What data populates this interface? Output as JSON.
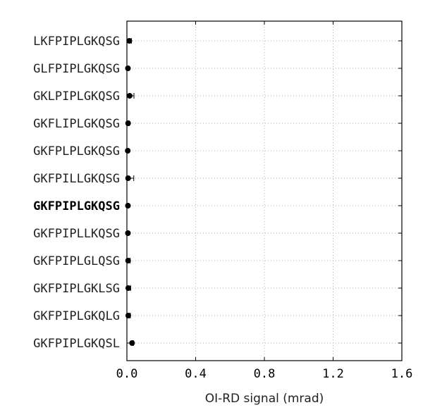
{
  "chart_data": {
    "type": "scatter",
    "orientation": "horizontal",
    "xlabel": "OI-RD signal (mrad)",
    "xlim": [
      0.0,
      1.6
    ],
    "xticks": [
      "0.0",
      "0.4",
      "0.8",
      "1.2",
      "1.6"
    ],
    "grid": true,
    "highlighted_category": "GKFPIPLGKQSG",
    "categories": [
      "LKFPIPLGKQSG",
      "GLFPIPLGKQSG",
      "GKLPIPLGKQSG",
      "GKFLIPLGKQSG",
      "GKFPLPLGKQSG",
      "GKFPILLGKQSG",
      "GKFPIPLGKQSG",
      "GKFPIPLLKQSG",
      "GKFPIPLGLQSG",
      "GKFPIPLGKLSG",
      "GKFPIPLGKQLG",
      "GKFPIPLGKQSL"
    ],
    "values": [
      0.014,
      0.006,
      0.016,
      0.007,
      0.005,
      0.007,
      0.006,
      0.006,
      0.007,
      0.008,
      0.008,
      0.03
    ],
    "errors": [
      0.012,
      0.004,
      0.025,
      0.006,
      0.003,
      0.033,
      0.004,
      0.004,
      0.012,
      0.014,
      0.012,
      0.008
    ],
    "marker_color": "#000000",
    "grid_color": "#b0b0b0"
  }
}
